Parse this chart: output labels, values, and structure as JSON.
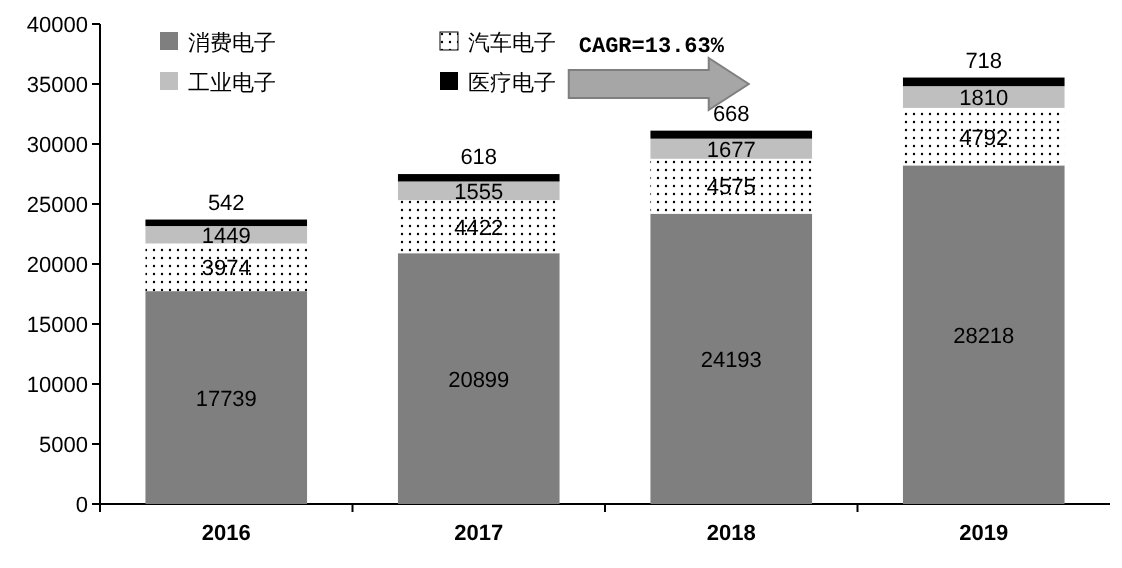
{
  "chart_data": {
    "type": "bar",
    "stacked": true,
    "categories": [
      "2016",
      "2017",
      "2018",
      "2019"
    ],
    "series": [
      {
        "name": "消费电子",
        "color": "#7f7f7f",
        "values": [
          17739,
          20899,
          24193,
          28218
        ]
      },
      {
        "name": "汽车电子",
        "color": "#ffffff",
        "values": [
          3974,
          4422,
          4575,
          4792
        ]
      },
      {
        "name": "工业电子",
        "color": "#bfbfbf",
        "values": [
          1449,
          1555,
          1677,
          1810
        ]
      },
      {
        "name": "医疗电子",
        "color": "#000000",
        "values": [
          542,
          618,
          668,
          718
        ]
      }
    ],
    "ylim": [
      0,
      40000
    ],
    "yticks": [
      0,
      5000,
      10000,
      15000,
      20000,
      25000,
      30000,
      35000,
      40000
    ],
    "data_labels": true,
    "legend": "top left",
    "grid": false,
    "annotations": [
      "CAGR=13.63%"
    ]
  }
}
